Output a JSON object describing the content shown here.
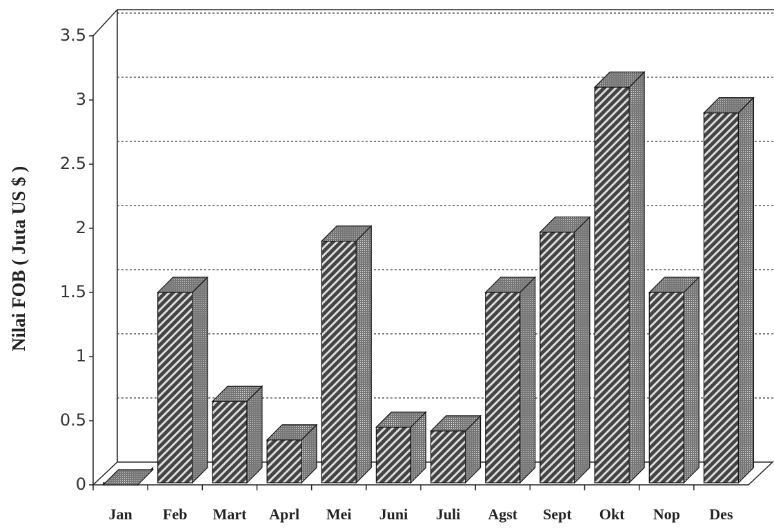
{
  "chart_data": {
    "type": "bar3d",
    "y_label": "Nilai FOB ( Juta US $ )",
    "categories": [
      "Jan",
      "Feb",
      "Mart",
      "Aprl",
      "Mei",
      "Juni",
      "Juli",
      "Agst",
      "Sept",
      "Okt",
      "Nop",
      "Des"
    ],
    "values": [
      0,
      1.5,
      0.65,
      0.35,
      1.9,
      0.45,
      0.42,
      1.5,
      1.97,
      3.1,
      1.5,
      2.9
    ],
    "color": "#555555",
    "ylim": [
      0,
      3.5
    ],
    "yticks": [
      0,
      0.5,
      1,
      1.5,
      2,
      2.5,
      3,
      3.5
    ],
    "grid": true
  }
}
